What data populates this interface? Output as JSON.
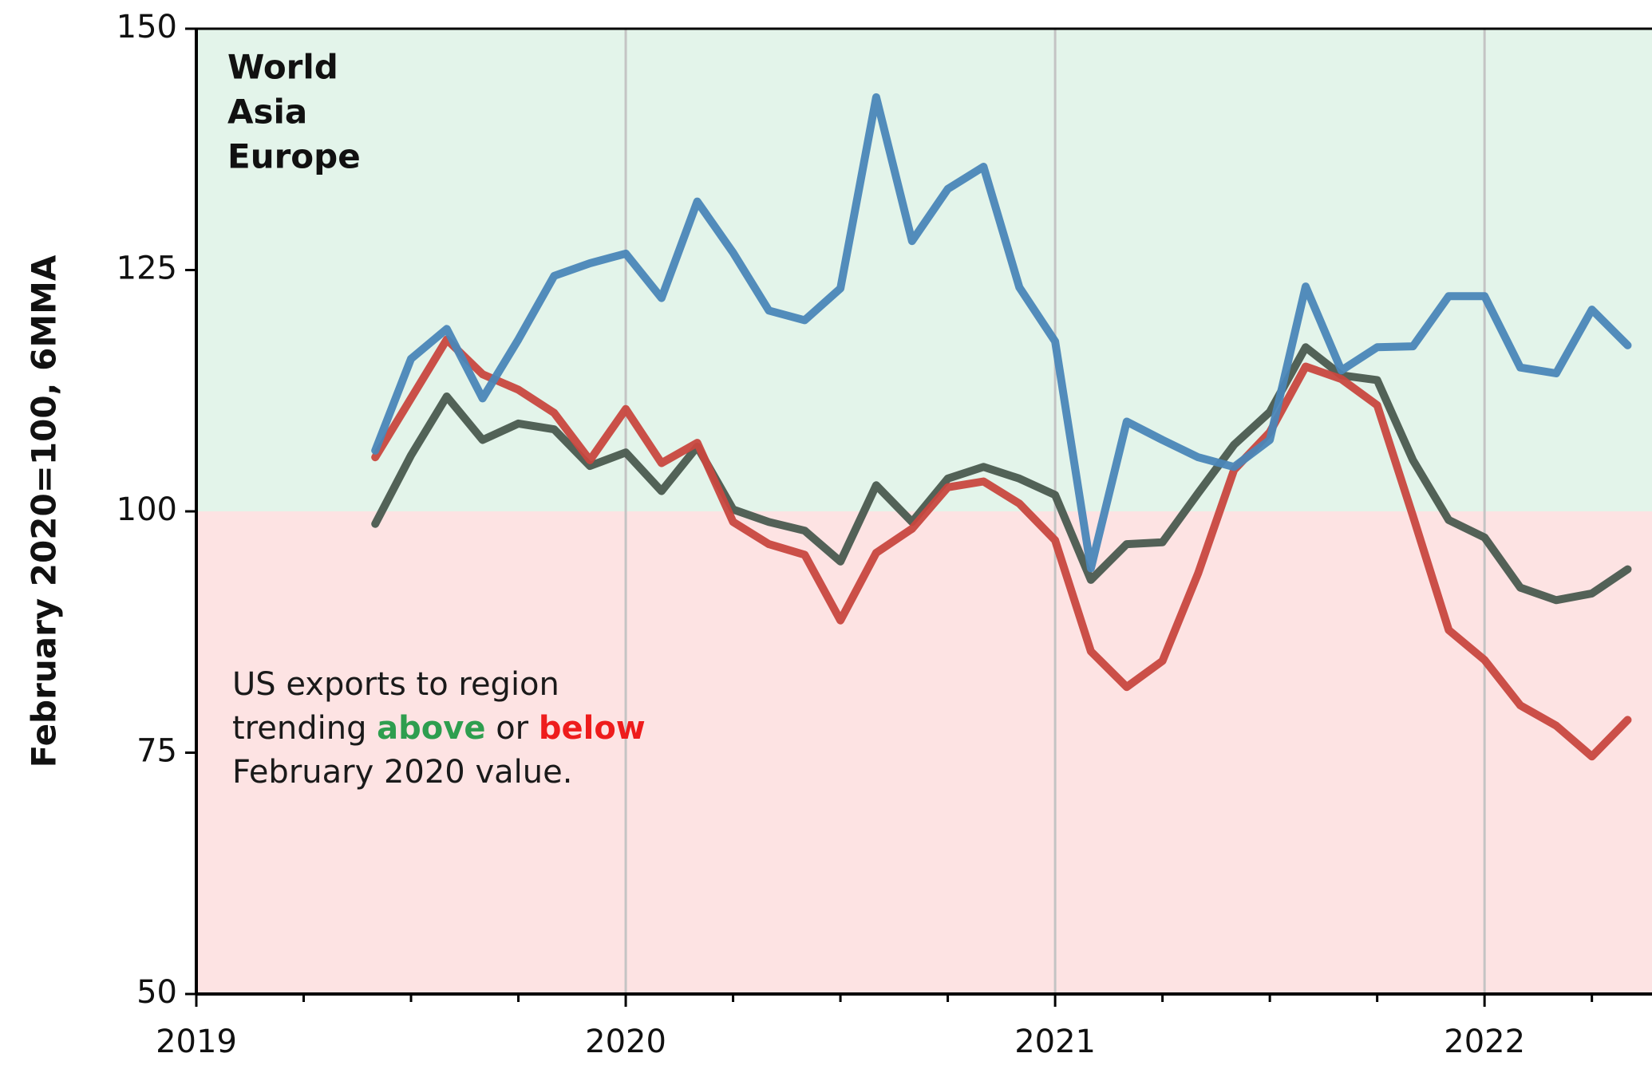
{
  "chart_data": {
    "type": "line",
    "y_label": "February 2020=100, 6MMA",
    "x": [
      2019.4167,
      2019.5,
      2019.5833,
      2019.6667,
      2019.75,
      2019.8333,
      2019.9167,
      2020,
      2020.0833,
      2020.1667,
      2020.25,
      2020.3333,
      2020.4167,
      2020.5,
      2020.5833,
      2020.6667,
      2020.75,
      2020.8333,
      2020.9167,
      2021,
      2021.0833,
      2021.1667,
      2021.25,
      2021.3333,
      2021.4167,
      2021.5,
      2021.5833,
      2021.6667,
      2021.75,
      2021.8333,
      2021.9167,
      2022,
      2022.0833,
      2022.1667,
      2022.25,
      2022.3333
    ],
    "series": [
      {
        "name": "World",
        "color": "#4a5a4f",
        "values": [
          98.7,
          105.8,
          111.9,
          107.4,
          109.1,
          108.5,
          104.7,
          106.1,
          102.1,
          106.7,
          100.2,
          98.9,
          98.0,
          94.8,
          102.7,
          98.9,
          103.4,
          104.6,
          103.4,
          101.7,
          92.9,
          96.6,
          96.8,
          101.9,
          106.9,
          110.3,
          117.0,
          114.1,
          113.6,
          105.3,
          99.1,
          97.3,
          92.1,
          90.8,
          91.5,
          94.0
        ]
      },
      {
        "name": "Asia",
        "color": "#c8473f",
        "values": [
          105.6,
          111.7,
          117.8,
          114.2,
          112.6,
          110.2,
          105.3,
          110.6,
          105.0,
          107.1,
          98.9,
          96.6,
          95.5,
          88.7,
          95.7,
          98.2,
          102.5,
          103.1,
          100.8,
          97.0,
          85.5,
          81.8,
          84.5,
          93.6,
          104.3,
          108.2,
          115.0,
          113.7,
          111.0,
          99.5,
          87.7,
          84.6,
          79.9,
          77.8,
          74.6,
          78.4
        ]
      },
      {
        "name": "Europe",
        "color": "#4a86b8",
        "values": [
          106.3,
          115.8,
          118.9,
          111.7,
          117.8,
          124.4,
          125.7,
          126.7,
          122.1,
          132.1,
          126.8,
          120.8,
          119.8,
          123.1,
          142.9,
          128.0,
          133.4,
          135.7,
          123.2,
          117.6,
          94.1,
          109.3,
          107.4,
          105.6,
          104.6,
          107.4,
          123.3,
          114.6,
          117.0,
          117.1,
          122.3,
          122.3,
          114.9,
          114.3,
          120.9,
          117.2
        ]
      }
    ],
    "xlim": [
      2019,
      2022.39
    ],
    "xticks": [
      2019,
      2020,
      2021,
      2022
    ],
    "xminorticks": [
      2019.25,
      2019.5,
      2019.75,
      2020.25,
      2020.5,
      2020.75,
      2021.25,
      2021.5,
      2021.75,
      2022.25
    ],
    "ylim": [
      50,
      150
    ],
    "yticks": [
      50,
      75,
      100,
      125,
      150
    ],
    "grid": "x",
    "legend": "upper left",
    "shading": {
      "threshold": 100,
      "above_color": "#e3f4ea",
      "below_color": "#fde3e3"
    },
    "annotation": [
      [
        {
          "text": "US exports to region",
          "color": "#1a1a1a"
        }
      ],
      [
        {
          "text": "trending ",
          "color": "#1a1a1a"
        },
        {
          "text": "above",
          "color": "#2e9e4f",
          "bold": true
        },
        {
          "text": " or ",
          "color": "#1a1a1a"
        },
        {
          "text": "below",
          "color": "#ee1c1c",
          "bold": true
        }
      ],
      [
        {
          "text": "February 2020 value.",
          "color": "#1a1a1a"
        }
      ]
    ]
  }
}
